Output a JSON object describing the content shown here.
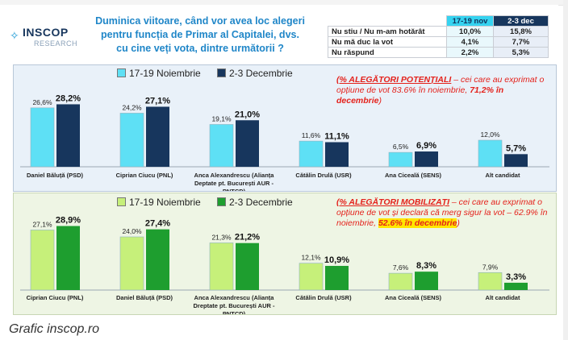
{
  "header": {
    "logo_name": "INSCOP",
    "logo_sub": "RESEARCH",
    "question": "Duminica viitoare, când vor avea loc alegeri pentru funcția de Primar al Capitalei, dvs. cu cine veți vota, dintre următorii ?"
  },
  "side_table": {
    "columns": [
      "17-19 nov",
      "2-3 dec"
    ],
    "rows": [
      {
        "label": "Nu stiu / Nu m-am hotărât",
        "v1": "10,0%",
        "v2": "15,8%"
      },
      {
        "label": "Nu mă duc la vot",
        "v1": "4,1%",
        "v2": "7,7%"
      },
      {
        "label": "Nu răspund",
        "v1": "2,2%",
        "v2": "5,3%"
      }
    ]
  },
  "colors": {
    "a_nov": "#5ee0f5",
    "a_dec": "#17365d",
    "b_nov": "#c6f07a",
    "b_dec": "#1e9e2f",
    "note": "#e4211b",
    "highlight": "#ffe600"
  },
  "chart_data": [
    {
      "type": "bar",
      "title": "ALEGĂTORI POTENȚIALI",
      "categories": [
        "Daniel Băluță (PSD)",
        "Ciprian Ciucu (PNL)",
        "Anca Alexandrescu (Alianța Dreptate pt. București AUR - PNȚCD)",
        "Cătălin Drulă (USR)",
        "Ana Ciceală (SENS)",
        "Alt candidat"
      ],
      "category_lines": [
        [
          "Daniel Băluță (PSD)"
        ],
        [
          "Ciprian Ciucu (PNL)"
        ],
        [
          "Anca Alexandrescu (Alianța",
          "Deptate pt. București AUR -",
          "PNȚCD)"
        ],
        [
          "Cătălin Drulă (USR)"
        ],
        [
          "Ana Ciceală (SENS)"
        ],
        [
          "Alt candidat"
        ]
      ],
      "series": [
        {
          "name": "17-19 Noiembrie",
          "values": [
            26.6,
            24.2,
            19.1,
            11.6,
            6.5,
            12.0
          ],
          "labels": [
            "26,6%",
            "24,2%",
            "19,1%",
            "11,6%",
            "6,5%",
            "12,0%"
          ]
        },
        {
          "name": "2-3 Decembrie",
          "values": [
            28.2,
            27.1,
            21.0,
            11.1,
            6.9,
            5.7
          ],
          "labels": [
            "28,2%",
            "27,1%",
            "21,0%",
            "11,1%",
            "6,9%",
            "5,7%"
          ]
        }
      ],
      "ylim": [
        0,
        35
      ],
      "note": {
        "head": "(% ALEGĂTORI POTENȚIALI",
        "body": " – cei care au exprimat o opțiune de vot 83.6% în noiembrie, ",
        "highlight": "71,2% în decembrie",
        "tail": ")"
      }
    },
    {
      "type": "bar",
      "title": "ALEGĂTORI MOBILIZAȚI",
      "categories": [
        "Ciprian Ciucu (PNL)",
        "Daniel Băluță (PSD)",
        "Anca Alexandrescu (Alianța Dreptate pt. București AUR - PNȚCD)",
        "Cătălin Drulă (USR)",
        "Ana Ciceală (SENS)",
        "Alt candidat"
      ],
      "category_lines": [
        [
          "Ciprian Ciucu (PNL)"
        ],
        [
          "Daniel Băluță (PSD)"
        ],
        [
          "Anca Alexandrescu (Alianța",
          "Dreptate pt. București AUR -",
          "PNȚCD)"
        ],
        [
          "Cătălin Drulă (USR)"
        ],
        [
          "Ana Ciceală (SENS)"
        ],
        [
          "Alt candidat"
        ]
      ],
      "series": [
        {
          "name": "17-19 Noiembrie",
          "values": [
            27.1,
            24.0,
            21.3,
            12.1,
            7.6,
            7.9
          ],
          "labels": [
            "27,1%",
            "24,0%",
            "21,3%",
            "12,1%",
            "7,6%",
            "7,9%"
          ]
        },
        {
          "name": "2-3 Decembrie",
          "values": [
            28.9,
            27.4,
            21.2,
            10.9,
            8.3,
            3.3
          ],
          "labels": [
            "28,9%",
            "27,4%",
            "21,2%",
            "10,9%",
            "8,3%",
            "3,3%"
          ]
        }
      ],
      "ylim": [
        0,
        35
      ],
      "note": {
        "head": "(% ALEGĂTORI MOBILIZAȚI",
        "body": " – cei care au exprimat o opțiune de vot și declară că merg sigur la vot – 62.9% în noiembrie, ",
        "highlight": "52.6% în decembrie",
        "tail": ")"
      }
    }
  ],
  "caption": "Grafic inscop.ro"
}
